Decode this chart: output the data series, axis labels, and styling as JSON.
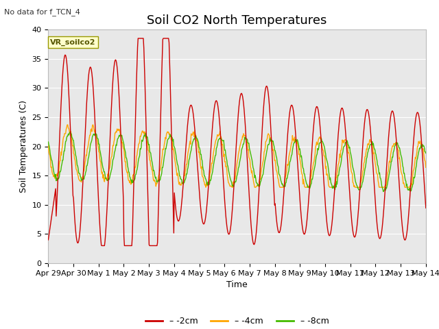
{
  "title": "Soil CO2 North Temperatures",
  "xlabel": "Time",
  "ylabel": "Soil Temperatures (C)",
  "annotation": "No data for f_TCN_4",
  "legend_label": "VR_soilco2",
  "ylim": [
    0,
    40
  ],
  "x_tick_labels": [
    "Apr 29",
    "Apr 30",
    "May 1",
    "May 2",
    "May 3",
    "May 4",
    "May 5",
    "May 6",
    "May 7",
    "May 8",
    "May 9",
    "May 10",
    "May 11",
    "May 12",
    "May 13",
    "May 14"
  ],
  "bg_color": "#e8e8e8",
  "grid_color": "#ffffff",
  "line_red": "#cc0000",
  "line_orange": "#ffa500",
  "line_green": "#44bb00",
  "title_fontsize": 13,
  "axis_label_fontsize": 9,
  "tick_fontsize": 8,
  "linewidth": 1.0
}
